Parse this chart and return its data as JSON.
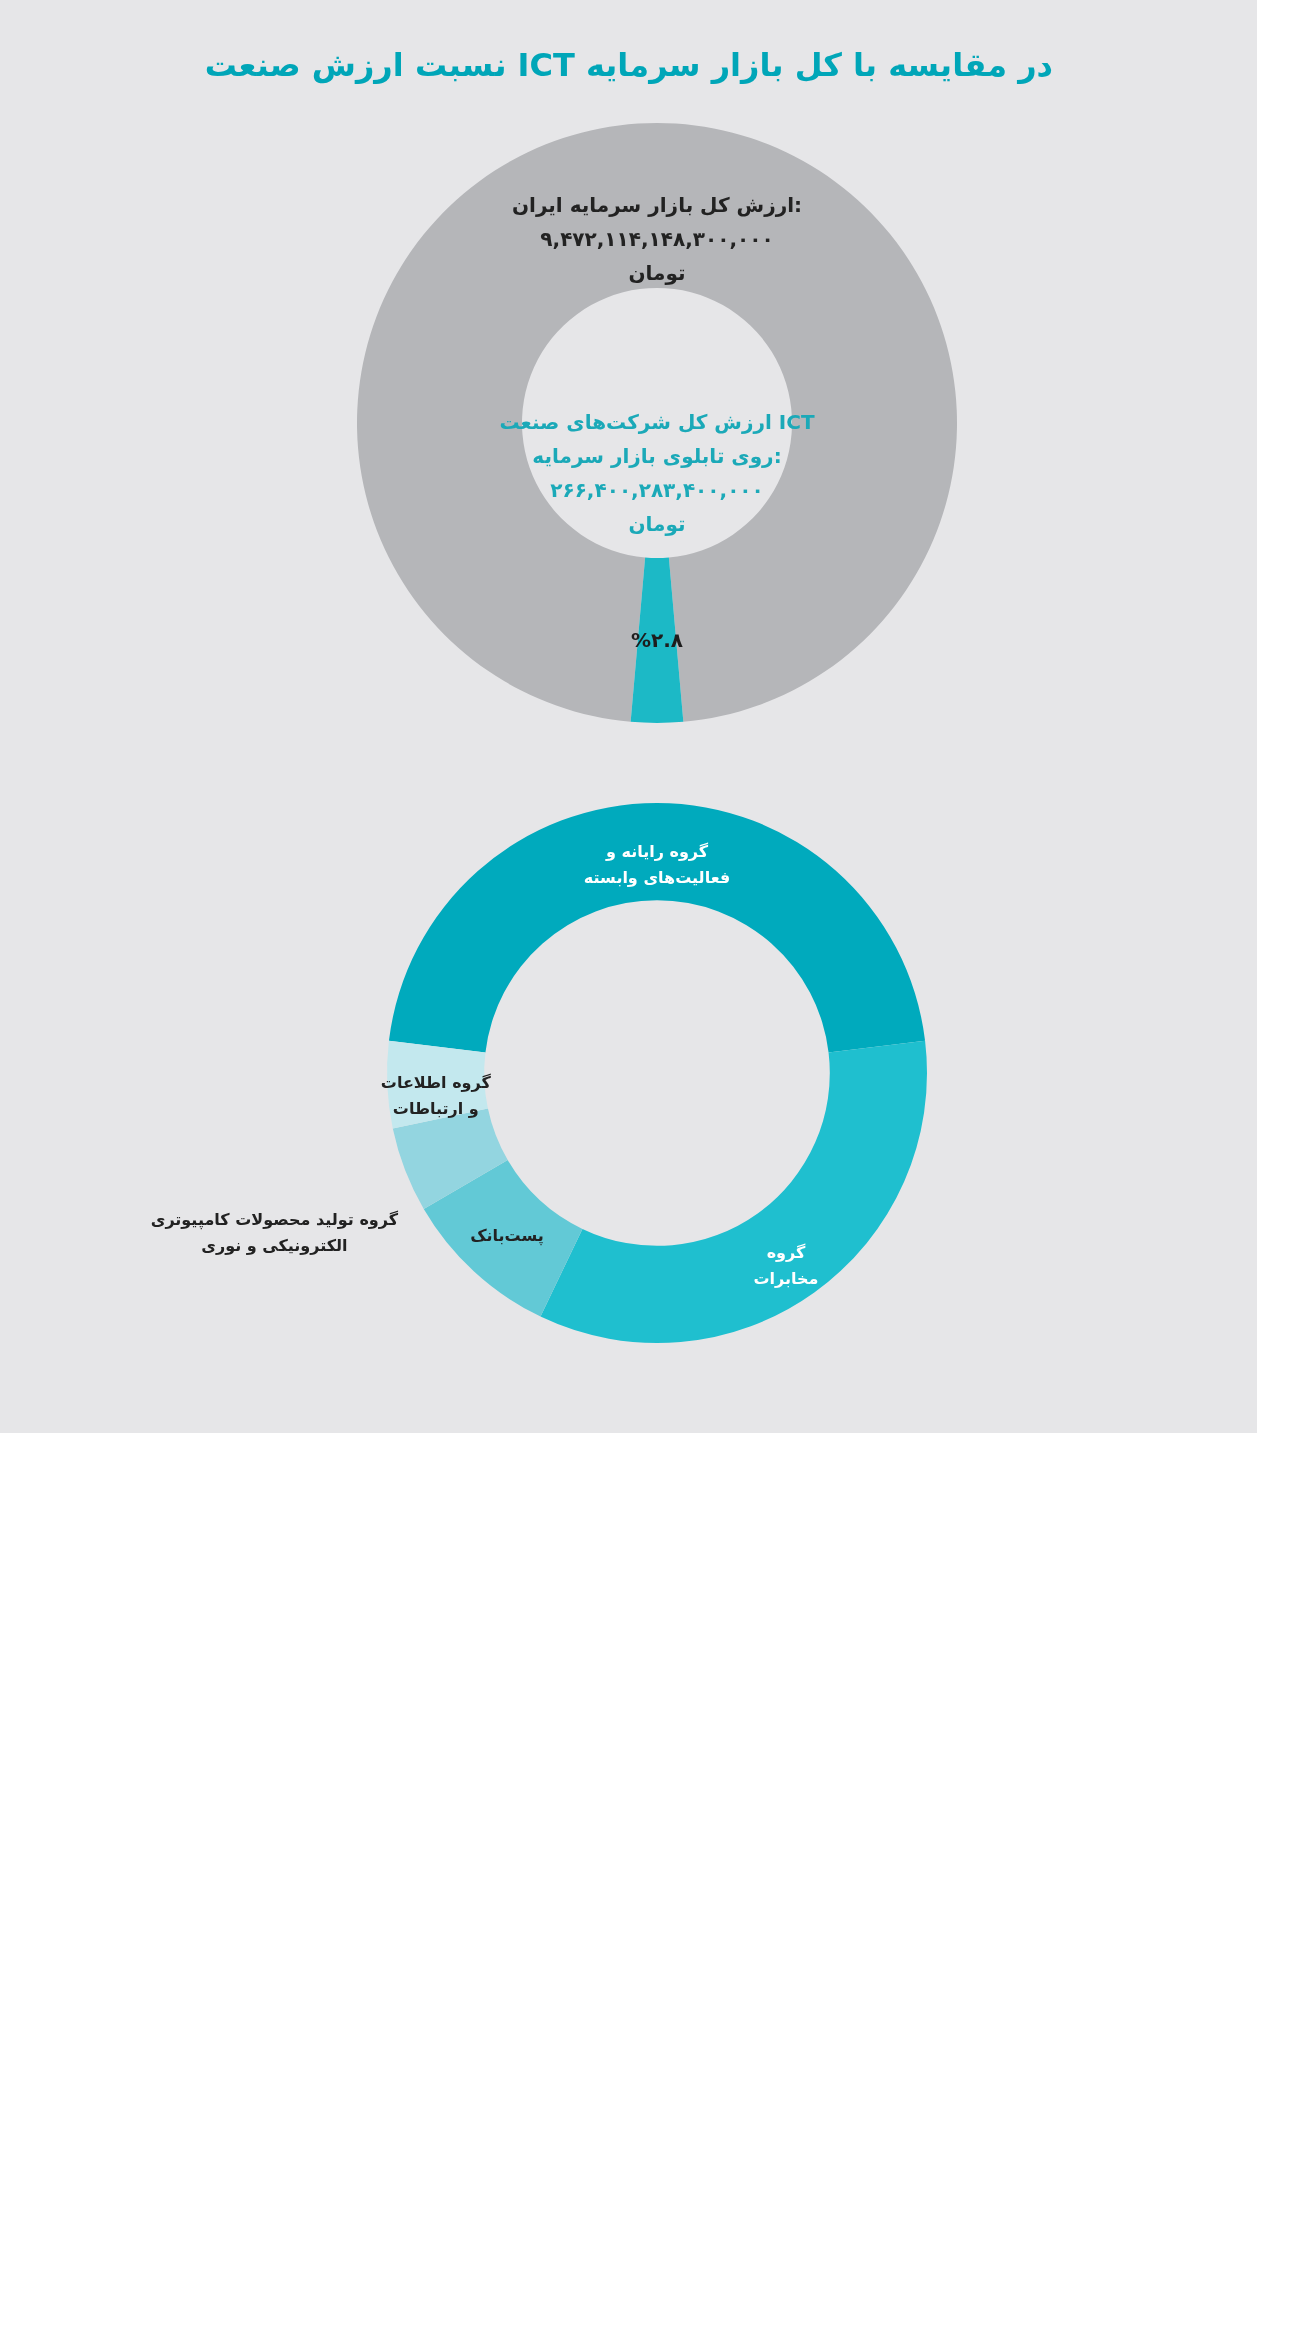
{
  "chart_data": [
    {
      "type": "donut",
      "title": "نسبت ارزش صنعت ICT در مقایسه با کل بازار سرمایه",
      "categories": [
        "ارزش کل بازار سرمایه ایران:\n۹,۴۷۲,۱۱۴,۱۴۸,۳۰۰,۰۰۰\nتومان",
        "ارزش کل شرکت‌های صنعت ICT\nروی تابلوی بازار سرمایه:\n۲۶۶,۴۰۰,۲۸۳,۴۰۰,۰۰۰\nتومان"
      ],
      "values": [
        97.2,
        2.8
      ],
      "colors": [
        "#b5b6b9",
        "#1cb9c6"
      ],
      "value_labels": [
        null,
        "%۲.۸"
      ]
    },
    {
      "type": "donut",
      "categories": [
        "گروه رایانه و\nفعالیت‌های وابسته",
        "گروه\nمخابرات",
        "پست‌بانک",
        "گروه تولید محصولات کامپیوتری\nالکترونیکی و نوری",
        "گروه اطلاعات\nو ارتباطات"
      ],
      "values": [
        46.2,
        34.0,
        9.5,
        5.1,
        5.2
      ],
      "colors": [
        "#00aabd",
        "#1fbfcf",
        "#62c9d6",
        "#93d5e0",
        "#c3e8ee"
      ]
    }
  ]
}
